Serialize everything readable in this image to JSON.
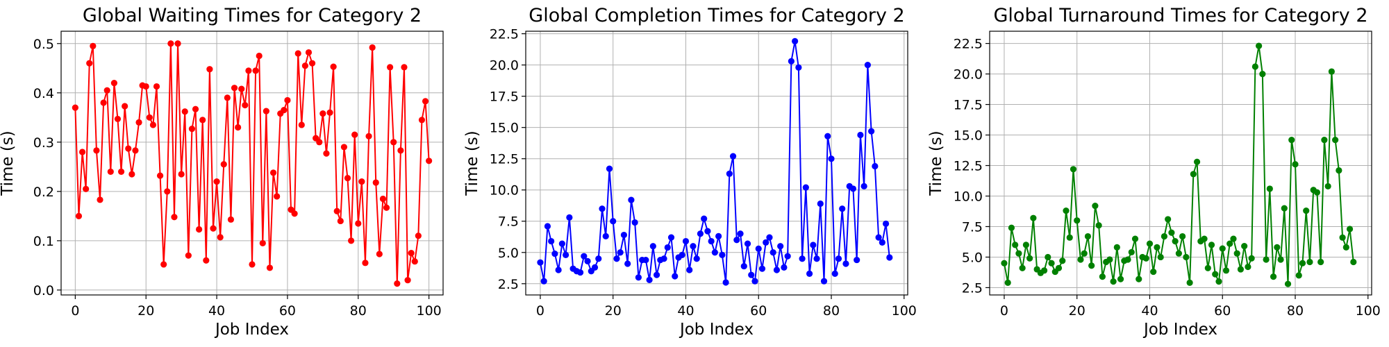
{
  "chart_data": [
    {
      "type": "line",
      "title": "Global Waiting Times for Category 2",
      "xlabel": "Job Index",
      "ylabel": "Time (s)",
      "xlim": [
        -4,
        104
      ],
      "ylim": [
        -0.01,
        0.525
      ],
      "xticks": [
        0,
        20,
        40,
        60,
        80,
        100
      ],
      "yticks": [
        0.0,
        0.1,
        0.2,
        0.3,
        0.4,
        0.5
      ],
      "ytick_decimals": 1,
      "grid": true,
      "color": "#ff0000",
      "series": [
        {
          "x_start": 0,
          "values": [
            0.37,
            0.15,
            0.28,
            0.205,
            0.46,
            0.495,
            0.283,
            0.183,
            0.38,
            0.405,
            0.24,
            0.42,
            0.347,
            0.24,
            0.373,
            0.287,
            0.235,
            0.283,
            0.34,
            0.415,
            0.413,
            0.35,
            0.335,
            0.413,
            0.232,
            0.052,
            0.2,
            0.5,
            0.148,
            0.5,
            0.235,
            0.362,
            0.07,
            0.327,
            0.367,
            0.123,
            0.345,
            0.06,
            0.448,
            0.125,
            0.22,
            0.107,
            0.255,
            0.39,
            0.143,
            0.41,
            0.33,
            0.408,
            0.375,
            0.445,
            0.052,
            0.445,
            0.475,
            0.095,
            0.363,
            0.045,
            0.238,
            0.19,
            0.358,
            0.365,
            0.385,
            0.163,
            0.155,
            0.48,
            0.335,
            0.455,
            0.482,
            0.46,
            0.308,
            0.3,
            0.358,
            0.277,
            0.36,
            0.453,
            0.16,
            0.14,
            0.29,
            0.227,
            0.1,
            0.315,
            0.135,
            0.22,
            0.055,
            0.312,
            0.492,
            0.218,
            0.073,
            0.185,
            0.167,
            0.452,
            0.3,
            0.013,
            0.283,
            0.452,
            0.02,
            0.075,
            0.058,
            0.11,
            0.345,
            0.383,
            0.262
          ]
        }
      ]
    },
    {
      "type": "line",
      "title": "Global Completion Times for Category 2",
      "xlabel": "Job Index",
      "ylabel": "Time (s)",
      "xlim": [
        -4,
        101
      ],
      "ylim": [
        1.6,
        22.7
      ],
      "xticks": [
        0,
        20,
        40,
        60,
        80,
        100
      ],
      "yticks": [
        2.5,
        5.0,
        7.5,
        10.0,
        12.5,
        15.0,
        17.5,
        20.0,
        22.5
      ],
      "ytick_decimals": 1,
      "grid": true,
      "color": "#0000ff",
      "series": [
        {
          "x_start": 0,
          "values": [
            4.2,
            2.7,
            7.1,
            5.9,
            4.9,
            3.6,
            5.7,
            4.8,
            7.8,
            3.7,
            3.5,
            3.4,
            4.7,
            4.3,
            3.5,
            3.8,
            4.5,
            8.5,
            6.3,
            11.7,
            7.5,
            4.5,
            5.0,
            6.4,
            4.1,
            9.2,
            7.4,
            3.0,
            4.4,
            4.4,
            2.8,
            5.5,
            3.2,
            4.4,
            4.5,
            5.4,
            6.2,
            3.1,
            4.6,
            4.8,
            5.9,
            3.6,
            5.5,
            4.5,
            6.5,
            7.7,
            6.7,
            5.9,
            5.0,
            6.3,
            4.8,
            2.6,
            11.3,
            12.7,
            6.0,
            6.5,
            3.9,
            5.7,
            3.2,
            2.7,
            5.3,
            3.7,
            5.8,
            6.2,
            5.0,
            3.6,
            5.5,
            3.8,
            4.7,
            20.3,
            21.9,
            19.8,
            4.5,
            10.2,
            3.3,
            5.6,
            4.5,
            8.9,
            2.7,
            14.3,
            12.5,
            3.3,
            4.5,
            8.5,
            4.1,
            10.3,
            10.1,
            4.4,
            14.4,
            10.3,
            20.0,
            14.7,
            11.9,
            6.2,
            5.8,
            7.3,
            4.6
          ]
        }
      ]
    },
    {
      "type": "line",
      "title": "Global Turnaround Times for Category 2",
      "xlabel": "Job Index",
      "ylabel": "Time (s)",
      "xlim": [
        -4,
        101
      ],
      "ylim": [
        1.9,
        23.5
      ],
      "xticks": [
        0,
        20,
        40,
        60,
        80,
        100
      ],
      "yticks": [
        2.5,
        5.0,
        7.5,
        10.0,
        12.5,
        15.0,
        17.5,
        20.0,
        22.5
      ],
      "ytick_decimals": 1,
      "grid": true,
      "color": "#008000",
      "series": [
        {
          "x_start": 0,
          "values": [
            4.5,
            2.9,
            7.4,
            6.0,
            5.3,
            4.1,
            6.0,
            4.9,
            8.2,
            4.0,
            3.7,
            3.9,
            5.0,
            4.5,
            3.8,
            4.1,
            4.7,
            8.8,
            6.6,
            12.2,
            8.0,
            4.8,
            5.3,
            6.7,
            4.3,
            9.2,
            7.6,
            3.4,
            4.6,
            4.8,
            3.0,
            5.8,
            3.2,
            4.7,
            4.8,
            5.4,
            6.5,
            3.2,
            5.0,
            4.9,
            6.1,
            3.8,
            5.8,
            5.0,
            6.7,
            8.1,
            7.0,
            6.3,
            5.3,
            6.7,
            5.0,
            2.9,
            11.8,
            12.8,
            6.3,
            6.5,
            4.1,
            6.0,
            3.6,
            3.0,
            5.7,
            3.9,
            6.1,
            6.5,
            5.3,
            4.0,
            5.9,
            4.2,
            4.9,
            20.6,
            22.3,
            20.0,
            4.8,
            10.6,
            3.4,
            5.8,
            4.8,
            9.0,
            2.8,
            14.6,
            12.6,
            3.5,
            4.5,
            8.8,
            4.6,
            10.5,
            10.3,
            4.6,
            14.6,
            10.8,
            20.2,
            14.6,
            12.1,
            6.6,
            5.8,
            7.3,
            4.6
          ]
        }
      ]
    }
  ]
}
